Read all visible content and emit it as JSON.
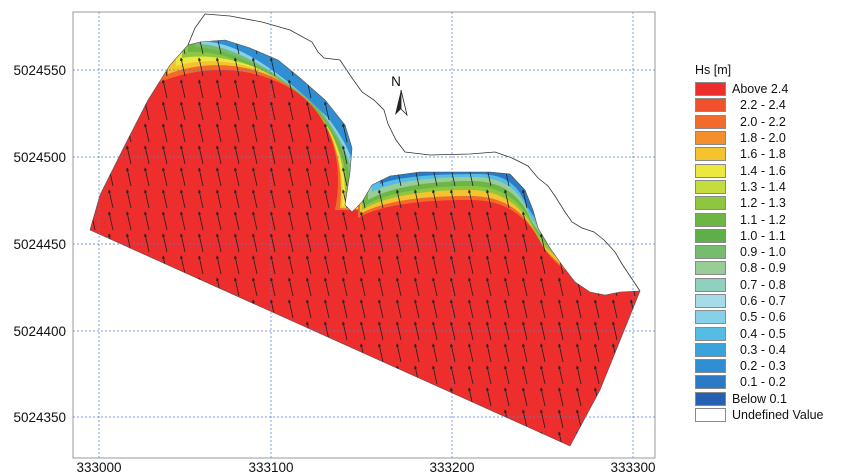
{
  "y_axis": {
    "ticks": [
      {
        "value": 5024550,
        "label": "5024550"
      },
      {
        "value": 5024500,
        "label": "5024500"
      },
      {
        "value": 5024450,
        "label": "5024450"
      },
      {
        "value": 5024400,
        "label": "5024400"
      },
      {
        "value": 5024350,
        "label": "5024350"
      }
    ]
  },
  "x_axis": {
    "ticks": [
      {
        "value": 333000,
        "label": "333000"
      },
      {
        "value": 333100,
        "label": "333100"
      },
      {
        "value": 333200,
        "label": "333200"
      },
      {
        "value": 333300,
        "label": "333300"
      }
    ]
  },
  "north_arrow": {
    "label": "N"
  },
  "legend": {
    "title": "Hs [m]",
    "items": [
      {
        "label": "Above 2.4",
        "color": "#ee2d2d",
        "indent": false
      },
      {
        "label": "2.2 - 2.4",
        "color": "#f0502b",
        "indent": true
      },
      {
        "label": "2.0 - 2.2",
        "color": "#f26b2a",
        "indent": true
      },
      {
        "label": "1.8 - 2.0",
        "color": "#f3902b",
        "indent": true
      },
      {
        "label": "1.6 - 1.8",
        "color": "#f5c32d",
        "indent": true
      },
      {
        "label": "1.4 - 1.6",
        "color": "#ede840",
        "indent": true
      },
      {
        "label": "1.3 - 1.4",
        "color": "#c4dc3c",
        "indent": true
      },
      {
        "label": "1.2 - 1.3",
        "color": "#8fc640",
        "indent": true
      },
      {
        "label": "1.1 - 1.2",
        "color": "#6db644",
        "indent": true
      },
      {
        "label": "1.0 - 1.1",
        "color": "#5eae4a",
        "indent": true
      },
      {
        "label": "0.9 - 1.0",
        "color": "#76bc6e",
        "indent": true
      },
      {
        "label": "0.8 - 0.9",
        "color": "#98cd98",
        "indent": true
      },
      {
        "label": "0.7 - 0.8",
        "color": "#8fd1be",
        "indent": true
      },
      {
        "label": "0.6 - 0.7",
        "color": "#a6dcea",
        "indent": true
      },
      {
        "label": "0.5 - 0.6",
        "color": "#86d0e8",
        "indent": true
      },
      {
        "label": "0.4 - 0.5",
        "color": "#55bde5",
        "indent": true
      },
      {
        "label": "0.3 - 0.4",
        "color": "#3ba3dc",
        "indent": true
      },
      {
        "label": "0.2 - 0.3",
        "color": "#2f8fd2",
        "indent": true
      },
      {
        "label": "0.1 - 0.2",
        "color": "#2a7ac6",
        "indent": true
      },
      {
        "label": "Below 0.1",
        "color": "#2560b2",
        "indent": false
      },
      {
        "label": "Undefined Value",
        "color": "#ffffff",
        "indent": false
      }
    ]
  }
}
